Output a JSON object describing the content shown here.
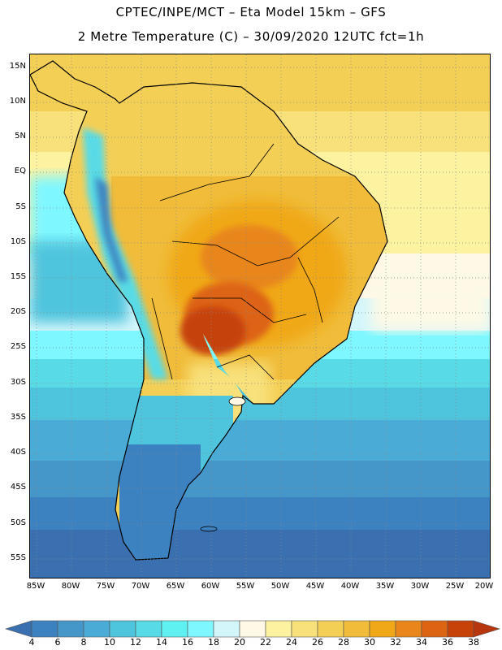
{
  "header": {
    "line1": "CPTEC/INPE/MCT –  Eta Model 15km – GFS",
    "line2": "2 Metre Temperature (C) – 30/09/2020 12UTC fct=1h"
  },
  "map": {
    "lat_ticks": [
      "15N",
      "10N",
      "5N",
      "EQ",
      "5S",
      "10S",
      "15S",
      "20S",
      "25S",
      "30S",
      "35S",
      "40S",
      "45S",
      "50S",
      "55S"
    ],
    "lon_ticks": [
      "85W",
      "80W",
      "75W",
      "70W",
      "65W",
      "60W",
      "55W",
      "50W",
      "45W",
      "40W",
      "35W",
      "30W",
      "25W",
      "20W"
    ]
  },
  "colorbar": {
    "labels": [
      "4",
      "6",
      "8",
      "10",
      "12",
      "14",
      "16",
      "18",
      "20",
      "22",
      "24",
      "26",
      "28",
      "30",
      "32",
      "34",
      "36",
      "38"
    ],
    "colors": [
      "#3a6fb0",
      "#3c82c0",
      "#4596c9",
      "#4aabd6",
      "#4fc4dd",
      "#58dbe6",
      "#5ff0f2",
      "#7ff7ff",
      "#d3f6fb",
      "#fdf9e6",
      "#fdf2a0",
      "#f8e07a",
      "#f4cf56",
      "#f0bc3a",
      "#f0a818",
      "#e8861c",
      "#dd6412",
      "#c64208",
      "#b7360e"
    ]
  }
}
